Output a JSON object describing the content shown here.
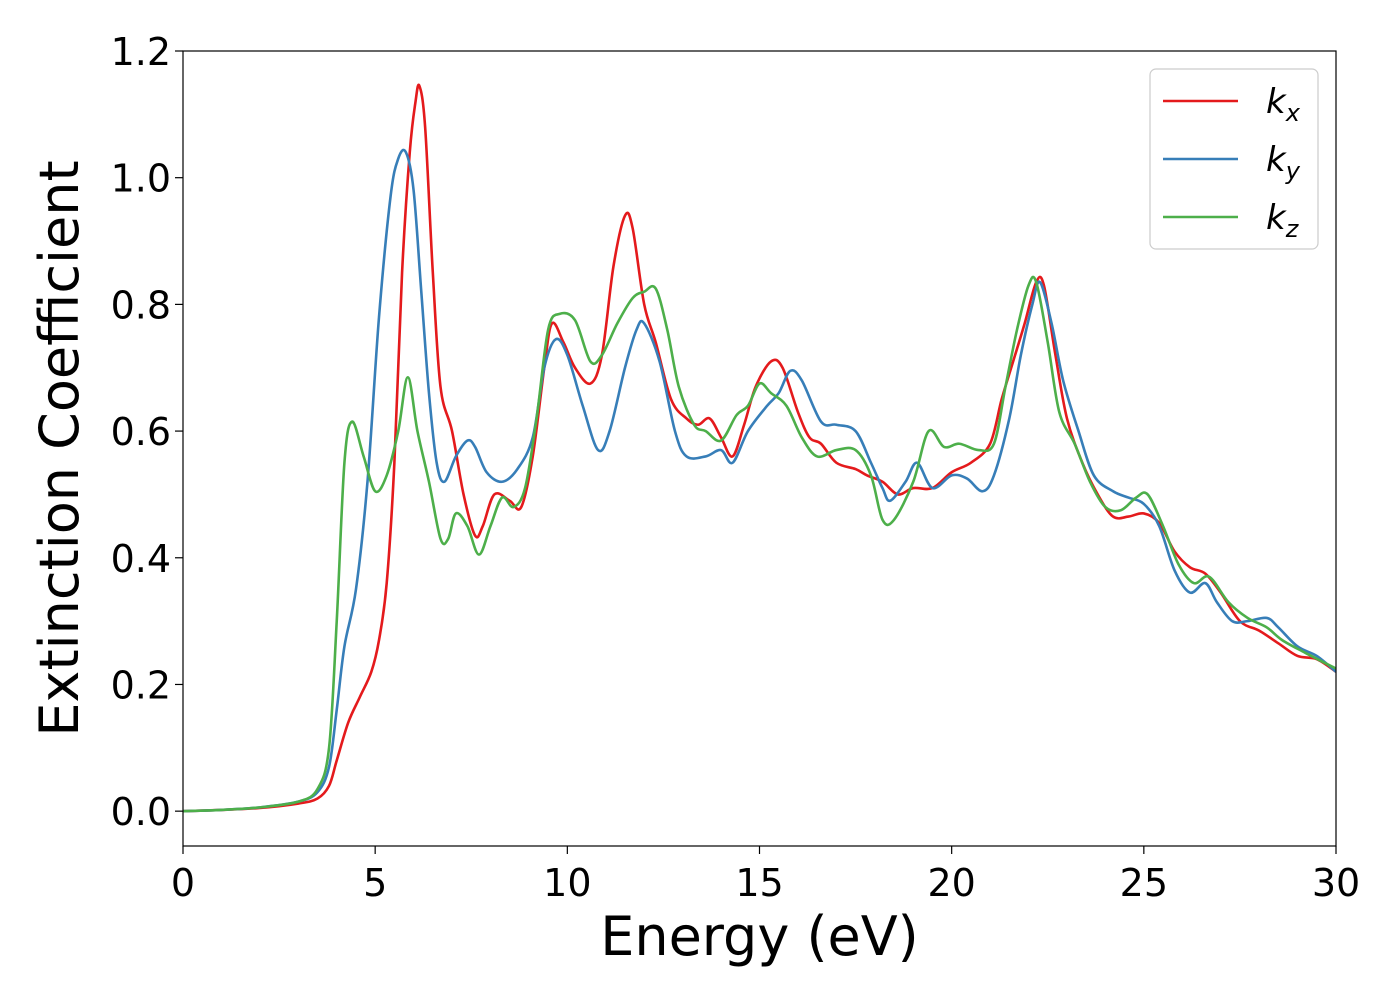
{
  "chart_data": {
    "type": "line",
    "title": "",
    "xlabel": "Energy (eV)",
    "ylabel": "Extinction Coefficient",
    "xlim": [
      0,
      30
    ],
    "ylim": [
      -0.055,
      1.2
    ],
    "x_ticks": [
      0,
      5,
      10,
      15,
      20,
      25,
      30
    ],
    "x_tick_labels": [
      "0",
      "5",
      "10",
      "15",
      "20",
      "25",
      "30"
    ],
    "y_ticks": [
      0.0,
      0.2,
      0.4,
      0.6,
      0.8,
      1.0,
      1.2
    ],
    "y_tick_labels": [
      "0.0",
      "0.2",
      "0.4",
      "0.6",
      "0.8",
      "1.0",
      "1.2"
    ],
    "grid": false,
    "legend_position": "top-right",
    "series": [
      {
        "name": "k_x",
        "label_main": "k",
        "label_sub": "x",
        "color": "#e41a1c",
        "points": [
          [
            0,
            0
          ],
          [
            1,
            0.002
          ],
          [
            2,
            0.005
          ],
          [
            3,
            0.012
          ],
          [
            3.5,
            0.02
          ],
          [
            3.8,
            0.04
          ],
          [
            4.0,
            0.08
          ],
          [
            4.3,
            0.14
          ],
          [
            4.6,
            0.18
          ],
          [
            4.9,
            0.22
          ],
          [
            5.1,
            0.27
          ],
          [
            5.3,
            0.36
          ],
          [
            5.5,
            0.55
          ],
          [
            5.7,
            0.85
          ],
          [
            5.9,
            1.04
          ],
          [
            6.05,
            1.12
          ],
          [
            6.15,
            1.145
          ],
          [
            6.3,
            1.08
          ],
          [
            6.5,
            0.85
          ],
          [
            6.7,
            0.67
          ],
          [
            7.0,
            0.6
          ],
          [
            7.3,
            0.5
          ],
          [
            7.6,
            0.435
          ],
          [
            7.8,
            0.45
          ],
          [
            8.1,
            0.5
          ],
          [
            8.5,
            0.49
          ],
          [
            8.8,
            0.48
          ],
          [
            9.1,
            0.56
          ],
          [
            9.4,
            0.7
          ],
          [
            9.6,
            0.77
          ],
          [
            9.9,
            0.74
          ],
          [
            10.2,
            0.7
          ],
          [
            10.6,
            0.675
          ],
          [
            10.9,
            0.72
          ],
          [
            11.2,
            0.86
          ],
          [
            11.5,
            0.94
          ],
          [
            11.7,
            0.92
          ],
          [
            12.0,
            0.8
          ],
          [
            12.3,
            0.74
          ],
          [
            12.7,
            0.65
          ],
          [
            13.1,
            0.62
          ],
          [
            13.4,
            0.61
          ],
          [
            13.7,
            0.62
          ],
          [
            14.0,
            0.59
          ],
          [
            14.3,
            0.56
          ],
          [
            14.6,
            0.61
          ],
          [
            14.9,
            0.67
          ],
          [
            15.3,
            0.71
          ],
          [
            15.6,
            0.7
          ],
          [
            16.0,
            0.63
          ],
          [
            16.3,
            0.59
          ],
          [
            16.6,
            0.58
          ],
          [
            17.0,
            0.55
          ],
          [
            17.5,
            0.54
          ],
          [
            17.8,
            0.53
          ],
          [
            18.2,
            0.52
          ],
          [
            18.6,
            0.5
          ],
          [
            19.0,
            0.51
          ],
          [
            19.5,
            0.51
          ],
          [
            20.0,
            0.535
          ],
          [
            20.5,
            0.55
          ],
          [
            21.0,
            0.58
          ],
          [
            21.3,
            0.65
          ],
          [
            21.6,
            0.71
          ],
          [
            21.9,
            0.77
          ],
          [
            22.2,
            0.835
          ],
          [
            22.4,
            0.83
          ],
          [
            22.7,
            0.72
          ],
          [
            23.0,
            0.62
          ],
          [
            23.4,
            0.55
          ],
          [
            23.8,
            0.5
          ],
          [
            24.2,
            0.465
          ],
          [
            24.6,
            0.465
          ],
          [
            25.0,
            0.47
          ],
          [
            25.4,
            0.455
          ],
          [
            25.8,
            0.41
          ],
          [
            26.2,
            0.385
          ],
          [
            26.6,
            0.375
          ],
          [
            27.0,
            0.345
          ],
          [
            27.5,
            0.3
          ],
          [
            28.0,
            0.285
          ],
          [
            28.5,
            0.265
          ],
          [
            29.0,
            0.245
          ],
          [
            29.5,
            0.24
          ],
          [
            30,
            0.22
          ]
        ]
      },
      {
        "name": "k_y",
        "label_main": "k",
        "label_sub": "y",
        "color": "#377eb8",
        "points": [
          [
            0,
            0
          ],
          [
            1,
            0.002
          ],
          [
            2,
            0.006
          ],
          [
            3,
            0.015
          ],
          [
            3.5,
            0.03
          ],
          [
            3.8,
            0.07
          ],
          [
            4.0,
            0.16
          ],
          [
            4.2,
            0.26
          ],
          [
            4.5,
            0.35
          ],
          [
            4.8,
            0.52
          ],
          [
            5.1,
            0.78
          ],
          [
            5.4,
            0.97
          ],
          [
            5.6,
            1.03
          ],
          [
            5.8,
            1.04
          ],
          [
            6.0,
            0.98
          ],
          [
            6.2,
            0.82
          ],
          [
            6.4,
            0.66
          ],
          [
            6.6,
            0.55
          ],
          [
            6.8,
            0.52
          ],
          [
            7.1,
            0.56
          ],
          [
            7.4,
            0.585
          ],
          [
            7.6,
            0.575
          ],
          [
            7.9,
            0.535
          ],
          [
            8.3,
            0.52
          ],
          [
            8.7,
            0.54
          ],
          [
            9.1,
            0.59
          ],
          [
            9.4,
            0.7
          ],
          [
            9.7,
            0.745
          ],
          [
            10.0,
            0.72
          ],
          [
            10.4,
            0.64
          ],
          [
            10.8,
            0.57
          ],
          [
            11.1,
            0.6
          ],
          [
            11.5,
            0.7
          ],
          [
            11.8,
            0.76
          ],
          [
            12.0,
            0.77
          ],
          [
            12.4,
            0.71
          ],
          [
            12.8,
            0.6
          ],
          [
            13.1,
            0.56
          ],
          [
            13.6,
            0.56
          ],
          [
            14.0,
            0.57
          ],
          [
            14.3,
            0.55
          ],
          [
            14.7,
            0.6
          ],
          [
            15.2,
            0.64
          ],
          [
            15.5,
            0.66
          ],
          [
            15.8,
            0.695
          ],
          [
            16.1,
            0.68
          ],
          [
            16.6,
            0.615
          ],
          [
            17.0,
            0.61
          ],
          [
            17.5,
            0.6
          ],
          [
            17.9,
            0.55
          ],
          [
            18.2,
            0.51
          ],
          [
            18.4,
            0.49
          ],
          [
            18.8,
            0.52
          ],
          [
            19.1,
            0.55
          ],
          [
            19.5,
            0.51
          ],
          [
            20.0,
            0.53
          ],
          [
            20.4,
            0.525
          ],
          [
            20.8,
            0.505
          ],
          [
            21.1,
            0.53
          ],
          [
            21.5,
            0.62
          ],
          [
            21.8,
            0.72
          ],
          [
            22.1,
            0.8
          ],
          [
            22.3,
            0.835
          ],
          [
            22.6,
            0.77
          ],
          [
            22.9,
            0.68
          ],
          [
            23.3,
            0.6
          ],
          [
            23.7,
            0.53
          ],
          [
            24.2,
            0.505
          ],
          [
            24.6,
            0.495
          ],
          [
            25.0,
            0.485
          ],
          [
            25.4,
            0.45
          ],
          [
            25.8,
            0.38
          ],
          [
            26.2,
            0.345
          ],
          [
            26.6,
            0.36
          ],
          [
            26.9,
            0.33
          ],
          [
            27.3,
            0.3
          ],
          [
            27.7,
            0.3
          ],
          [
            28.2,
            0.305
          ],
          [
            28.5,
            0.29
          ],
          [
            29.0,
            0.26
          ],
          [
            29.5,
            0.245
          ],
          [
            30,
            0.22
          ]
        ]
      },
      {
        "name": "k_z",
        "label_main": "k",
        "label_sub": "z",
        "color": "#4daf4a",
        "points": [
          [
            0,
            0
          ],
          [
            1,
            0.002
          ],
          [
            2,
            0.006
          ],
          [
            3,
            0.015
          ],
          [
            3.5,
            0.035
          ],
          [
            3.8,
            0.1
          ],
          [
            4.0,
            0.3
          ],
          [
            4.2,
            0.55
          ],
          [
            4.4,
            0.615
          ],
          [
            4.7,
            0.56
          ],
          [
            5.0,
            0.505
          ],
          [
            5.3,
            0.53
          ],
          [
            5.6,
            0.6
          ],
          [
            5.85,
            0.685
          ],
          [
            6.1,
            0.6
          ],
          [
            6.4,
            0.52
          ],
          [
            6.7,
            0.43
          ],
          [
            6.9,
            0.43
          ],
          [
            7.1,
            0.47
          ],
          [
            7.4,
            0.45
          ],
          [
            7.7,
            0.405
          ],
          [
            8.0,
            0.45
          ],
          [
            8.3,
            0.495
          ],
          [
            8.6,
            0.48
          ],
          [
            8.9,
            0.51
          ],
          [
            9.2,
            0.62
          ],
          [
            9.5,
            0.76
          ],
          [
            9.8,
            0.785
          ],
          [
            10.2,
            0.775
          ],
          [
            10.6,
            0.71
          ],
          [
            10.9,
            0.72
          ],
          [
            11.3,
            0.77
          ],
          [
            11.7,
            0.81
          ],
          [
            12.0,
            0.82
          ],
          [
            12.3,
            0.825
          ],
          [
            12.6,
            0.76
          ],
          [
            12.9,
            0.67
          ],
          [
            13.3,
            0.61
          ],
          [
            13.6,
            0.6
          ],
          [
            14.0,
            0.585
          ],
          [
            14.4,
            0.625
          ],
          [
            14.7,
            0.64
          ],
          [
            15.0,
            0.675
          ],
          [
            15.3,
            0.66
          ],
          [
            15.7,
            0.64
          ],
          [
            16.1,
            0.59
          ],
          [
            16.5,
            0.56
          ],
          [
            17.0,
            0.57
          ],
          [
            17.5,
            0.57
          ],
          [
            17.9,
            0.53
          ],
          [
            18.2,
            0.46
          ],
          [
            18.5,
            0.46
          ],
          [
            19.0,
            0.52
          ],
          [
            19.4,
            0.6
          ],
          [
            19.8,
            0.575
          ],
          [
            20.2,
            0.58
          ],
          [
            20.7,
            0.57
          ],
          [
            21.1,
            0.58
          ],
          [
            21.4,
            0.67
          ],
          [
            21.7,
            0.76
          ],
          [
            22.0,
            0.83
          ],
          [
            22.2,
            0.835
          ],
          [
            22.5,
            0.74
          ],
          [
            22.8,
            0.63
          ],
          [
            23.2,
            0.58
          ],
          [
            23.6,
            0.52
          ],
          [
            24.0,
            0.48
          ],
          [
            24.4,
            0.475
          ],
          [
            24.8,
            0.495
          ],
          [
            25.1,
            0.5
          ],
          [
            25.5,
            0.45
          ],
          [
            25.9,
            0.39
          ],
          [
            26.3,
            0.36
          ],
          [
            26.7,
            0.37
          ],
          [
            27.2,
            0.33
          ],
          [
            27.7,
            0.305
          ],
          [
            28.2,
            0.29
          ],
          [
            28.6,
            0.27
          ],
          [
            29.2,
            0.25
          ],
          [
            30,
            0.225
          ]
        ]
      }
    ]
  }
}
